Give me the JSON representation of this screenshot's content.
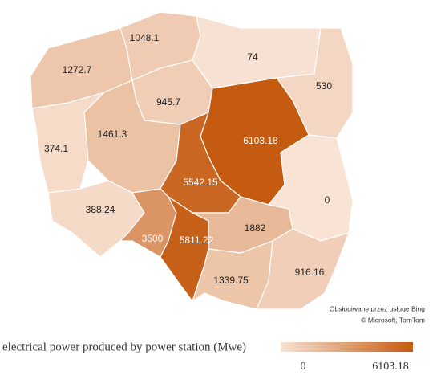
{
  "map": {
    "regions": [
      {
        "value": 1048.1
      },
      {
        "value": 74
      },
      {
        "value": 530
      },
      {
        "value": 1272.7
      },
      {
        "value": 945.7
      },
      {
        "value": 374.1
      },
      {
        "value": 1461.3
      },
      {
        "value": 6103.18
      },
      {
        "value": 5542.15
      },
      {
        "value": 0
      },
      {
        "value": 388.24
      },
      {
        "value": 3500
      },
      {
        "value": 5811.22
      },
      {
        "value": 1882
      },
      {
        "value": 1339.75
      },
      {
        "value": 916.16
      }
    ],
    "legend": {
      "title": "electrical power produced by power station (Mwe)",
      "min": 0,
      "max": 6103.18,
      "colors": [
        "#f8e3d4",
        "#c55a11"
      ]
    },
    "attribution": [
      "Obsługiwane przez usługę Bing",
      "© Microsoft, TomTom"
    ]
  }
}
